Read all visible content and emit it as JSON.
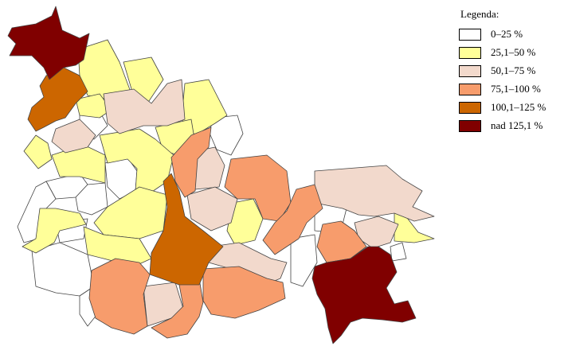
{
  "colors": {
    "c0": "#ffffff",
    "c1": "#ffff99",
    "c2": "#f2d9cc",
    "c3": "#f79c6c",
    "c4": "#cc6600",
    "c5": "#800000",
    "border": "#444444"
  },
  "legend": {
    "title": "Legenda:",
    "items": [
      {
        "label": "0–25 %",
        "color": "#ffffff"
      },
      {
        "label": "25,1–50 %",
        "color": "#ffff99"
      },
      {
        "label": "50,1–75 %",
        "color": "#f2d9cc"
      },
      {
        "label": "75,1–100 %",
        "color": "#f79c6c"
      },
      {
        "label": "100,1–125 %",
        "color": "#cc6600"
      },
      {
        "label": "nad 125,1 %",
        "color": "#800000"
      }
    ]
  }
}
